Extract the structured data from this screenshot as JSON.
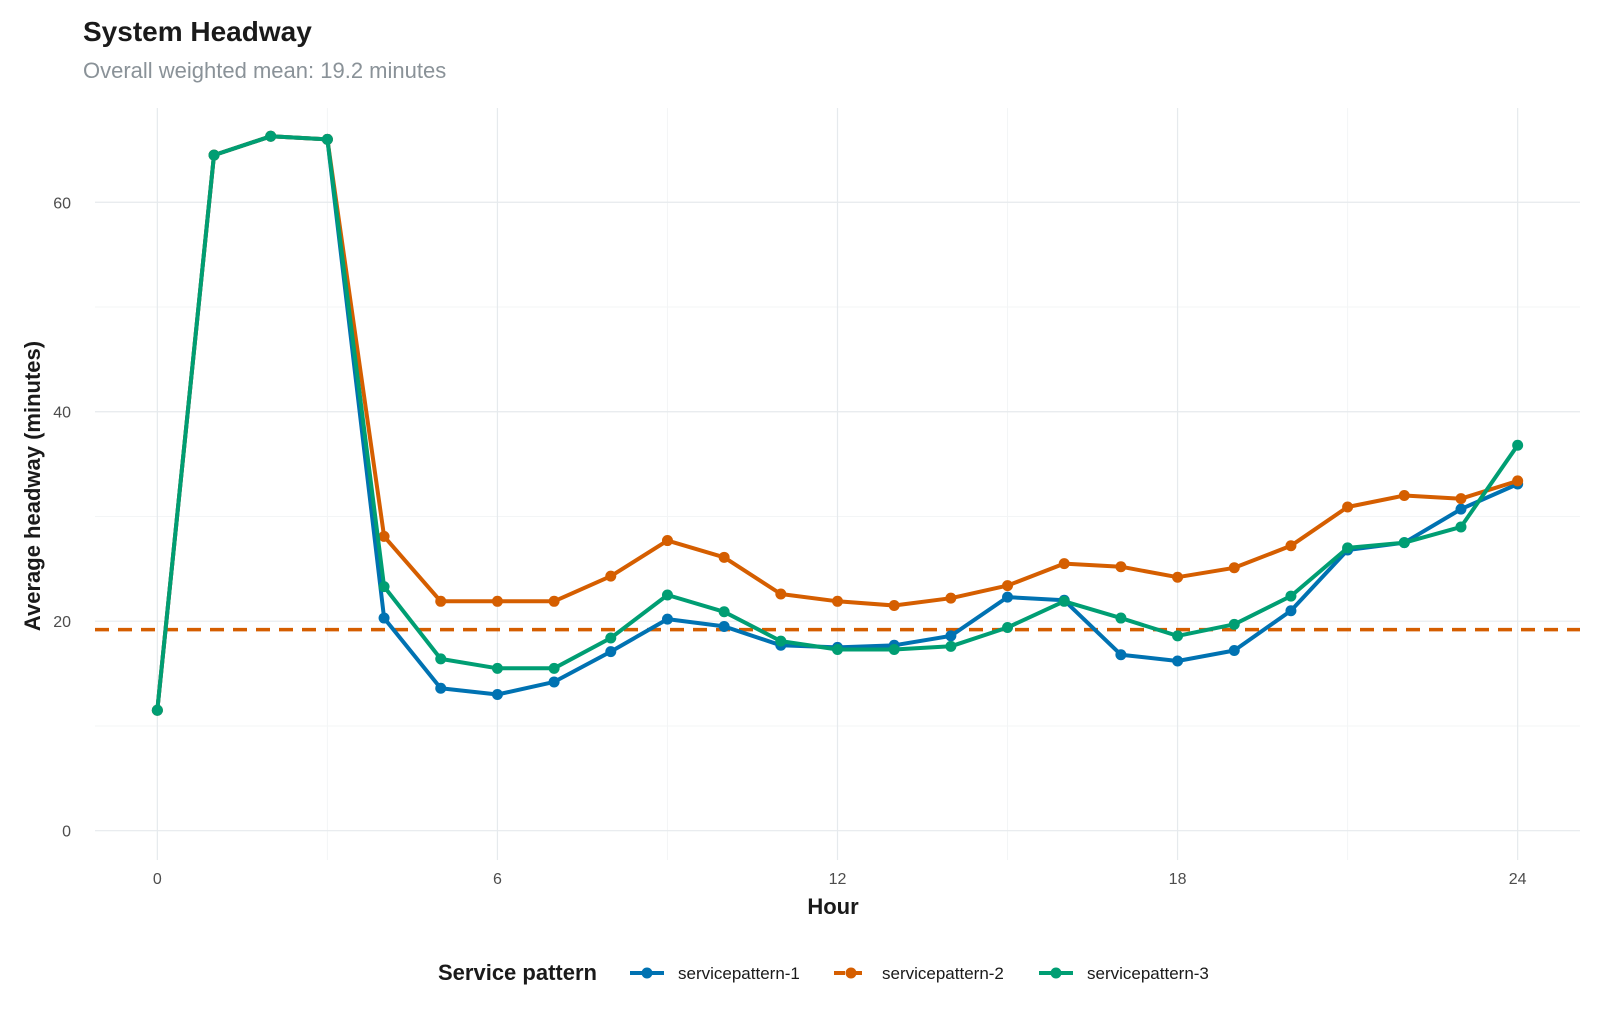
{
  "chart_data": {
    "type": "line",
    "title": "System Headway",
    "subtitle": "Overall weighted mean: 19.2 minutes",
    "xlabel": "Hour",
    "ylabel": "Average headway (minutes)",
    "xlim": [
      -1.1,
      25.1
    ],
    "ylim": [
      -2.8,
      69
    ],
    "x_ticks": [
      0,
      6,
      12,
      18,
      24
    ],
    "y_ticks": [
      0,
      20,
      40,
      60
    ],
    "grid": true,
    "legend": {
      "title": "Service pattern",
      "position": "bottom"
    },
    "reference_line": {
      "value": 19.2,
      "style": "dashed",
      "color": "#D55E00"
    },
    "x": [
      0,
      1,
      2,
      3,
      4,
      5,
      6,
      7,
      8,
      9,
      10,
      11,
      12,
      13,
      14,
      15,
      16,
      17,
      18,
      19,
      20,
      21,
      22,
      23,
      24
    ],
    "series": [
      {
        "name": "servicepattern-1",
        "color": "#0072B2",
        "values": [
          11.5,
          64.5,
          66.3,
          66.0,
          20.3,
          13.6,
          13.0,
          14.2,
          17.1,
          20.2,
          19.5,
          17.7,
          17.5,
          17.7,
          18.6,
          22.3,
          22.0,
          16.8,
          16.2,
          17.2,
          21.0,
          26.8,
          27.5,
          30.7,
          33.1
        ]
      },
      {
        "name": "servicepattern-2",
        "color": "#D55E00",
        "values": [
          11.5,
          64.5,
          66.3,
          66.0,
          28.1,
          21.9,
          21.9,
          21.9,
          24.3,
          27.7,
          26.1,
          22.6,
          21.9,
          21.5,
          22.2,
          23.4,
          25.5,
          25.2,
          24.2,
          25.1,
          27.2,
          30.9,
          32.0,
          31.7,
          33.4
        ]
      },
      {
        "name": "servicepattern-3",
        "color": "#009E73",
        "values": [
          11.5,
          64.5,
          66.3,
          66.0,
          23.3,
          16.4,
          15.5,
          15.5,
          18.4,
          22.5,
          20.9,
          18.1,
          17.3,
          17.3,
          17.6,
          19.4,
          21.9,
          20.3,
          18.6,
          19.7,
          22.4,
          27.0,
          27.5,
          29.0,
          36.8
        ]
      }
    ]
  }
}
